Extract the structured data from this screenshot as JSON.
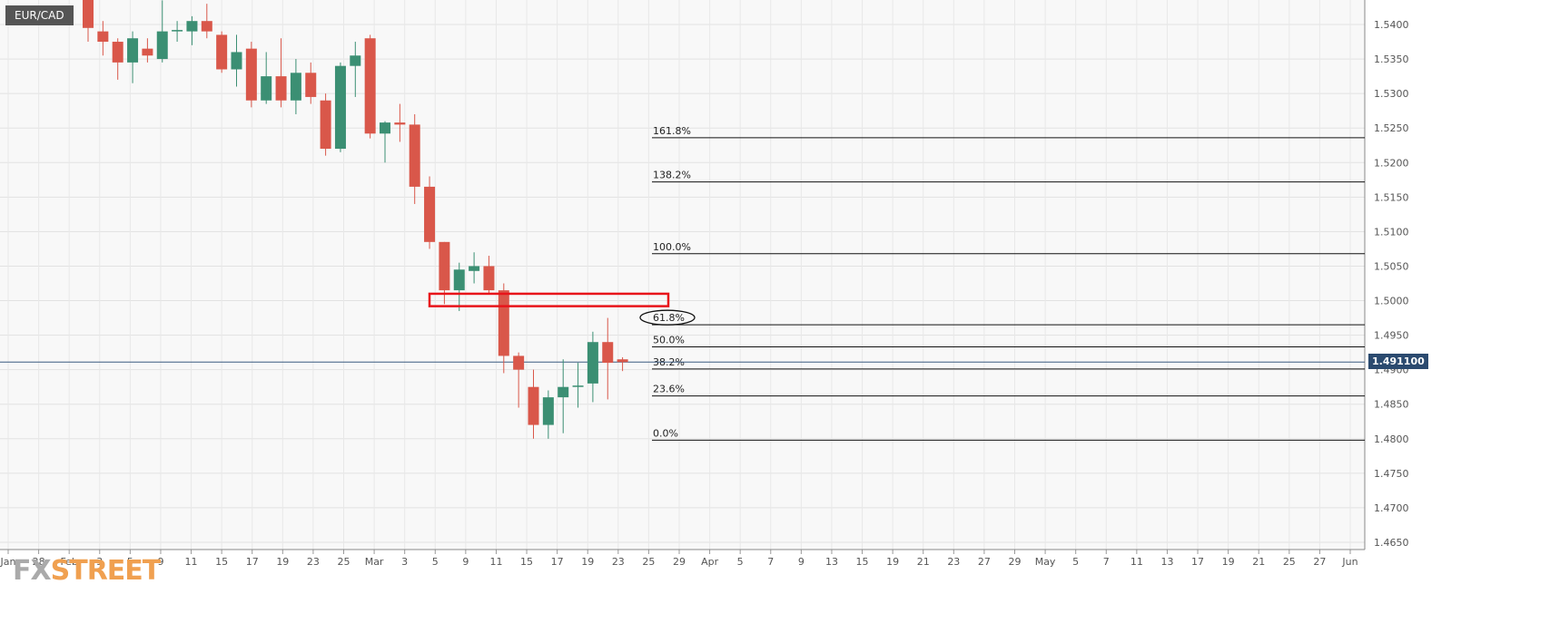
{
  "symbol": "EUR/CAD",
  "current_price_label": "1.491100",
  "logo": {
    "part1": "FX",
    "part2": "STREET"
  },
  "chart_data": {
    "type": "candlestick",
    "title": "",
    "y_ticks": [
      "1.5400",
      "1.5350",
      "1.5300",
      "1.5250",
      "1.5200",
      "1.5150",
      "1.5100",
      "1.5050",
      "1.5000",
      "1.4950",
      "1.4900",
      "1.4850",
      "1.4800",
      "1.4750",
      "1.4700",
      "1.4650"
    ],
    "y_tick_values": [
      1.54,
      1.535,
      1.53,
      1.525,
      1.52,
      1.515,
      1.51,
      1.505,
      1.5,
      1.495,
      1.49,
      1.485,
      1.48,
      1.475,
      1.47,
      1.465
    ],
    "x_ticks": [
      "Jan",
      "28",
      "Feb",
      "3",
      "5",
      "9",
      "11",
      "15",
      "17",
      "19",
      "23",
      "25",
      "Mar",
      "3",
      "5",
      "9",
      "11",
      "15",
      "17",
      "19",
      "23",
      "25",
      "29",
      "Apr",
      "5",
      "7",
      "9",
      "13",
      "15",
      "19",
      "21",
      "23",
      "27",
      "29",
      "May",
      "5",
      "7",
      "11",
      "13",
      "17",
      "19",
      "21",
      "25",
      "27",
      "Jun"
    ],
    "current_price": 1.4911,
    "fibonacci": [
      {
        "label": "161.8%",
        "value": 1.5236
      },
      {
        "label": "138.2%",
        "value": 1.5172
      },
      {
        "label": "100.0%",
        "value": 1.5068
      },
      {
        "label": "61.8%",
        "value": 1.4965
      },
      {
        "label": "50.0%",
        "value": 1.4933
      },
      {
        "label": "38.2%",
        "value": 1.4901
      },
      {
        "label": "23.6%",
        "value": 1.4862
      },
      {
        "label": "0.0%",
        "value": 1.4798
      }
    ],
    "zone": {
      "low": 1.4992,
      "high": 1.501
    },
    "candles": [
      {
        "o": 1.5455,
        "h": 1.5475,
        "l": 1.5375,
        "c": 1.5395
      },
      {
        "o": 1.539,
        "h": 1.5405,
        "l": 1.5355,
        "c": 1.5375
      },
      {
        "o": 1.5375,
        "h": 1.538,
        "l": 1.532,
        "c": 1.5345
      },
      {
        "o": 1.5345,
        "h": 1.539,
        "l": 1.5315,
        "c": 1.538
      },
      {
        "o": 1.5365,
        "h": 1.538,
        "l": 1.5345,
        "c": 1.5355
      },
      {
        "o": 1.535,
        "h": 1.5435,
        "l": 1.5345,
        "c": 1.539
      },
      {
        "o": 1.539,
        "h": 1.5405,
        "l": 1.5375,
        "c": 1.5392
      },
      {
        "o": 1.539,
        "h": 1.5412,
        "l": 1.537,
        "c": 1.5405
      },
      {
        "o": 1.5405,
        "h": 1.543,
        "l": 1.538,
        "c": 1.539
      },
      {
        "o": 1.5385,
        "h": 1.539,
        "l": 1.533,
        "c": 1.5335
      },
      {
        "o": 1.5335,
        "h": 1.5385,
        "l": 1.531,
        "c": 1.536
      },
      {
        "o": 1.5365,
        "h": 1.5375,
        "l": 1.528,
        "c": 1.529
      },
      {
        "o": 1.529,
        "h": 1.536,
        "l": 1.5285,
        "c": 1.5325
      },
      {
        "o": 1.5325,
        "h": 1.538,
        "l": 1.528,
        "c": 1.529
      },
      {
        "o": 1.529,
        "h": 1.535,
        "l": 1.527,
        "c": 1.533
      },
      {
        "o": 1.533,
        "h": 1.5345,
        "l": 1.5285,
        "c": 1.5295
      },
      {
        "o": 1.529,
        "h": 1.53,
        "l": 1.521,
        "c": 1.522
      },
      {
        "o": 1.522,
        "h": 1.5345,
        "l": 1.5215,
        "c": 1.534
      },
      {
        "o": 1.534,
        "h": 1.5375,
        "l": 1.5295,
        "c": 1.5355
      },
      {
        "o": 1.538,
        "h": 1.5385,
        "l": 1.5235,
        "c": 1.5242
      },
      {
        "o": 1.5242,
        "h": 1.526,
        "l": 1.52,
        "c": 1.5258
      },
      {
        "o": 1.5258,
        "h": 1.5285,
        "l": 1.523,
        "c": 1.5255
      },
      {
        "o": 1.5255,
        "h": 1.527,
        "l": 1.514,
        "c": 1.5165
      },
      {
        "o": 1.5165,
        "h": 1.518,
        "l": 1.5075,
        "c": 1.5085
      },
      {
        "o": 1.5085,
        "h": 1.5085,
        "l": 1.4995,
        "c": 1.5015
      },
      {
        "o": 1.5015,
        "h": 1.5055,
        "l": 1.4985,
        "c": 1.5045
      },
      {
        "o": 1.5043,
        "h": 1.507,
        "l": 1.5025,
        "c": 1.505
      },
      {
        "o": 1.505,
        "h": 1.5065,
        "l": 1.501,
        "c": 1.5015
      },
      {
        "o": 1.5015,
        "h": 1.5025,
        "l": 1.4895,
        "c": 1.492
      },
      {
        "o": 1.492,
        "h": 1.4925,
        "l": 1.4845,
        "c": 1.49
      },
      {
        "o": 1.4875,
        "h": 1.49,
        "l": 1.48,
        "c": 1.482
      },
      {
        "o": 1.482,
        "h": 1.487,
        "l": 1.48,
        "c": 1.486
      },
      {
        "o": 1.486,
        "h": 1.4915,
        "l": 1.4808,
        "c": 1.4875
      },
      {
        "o": 1.4875,
        "h": 1.491,
        "l": 1.4845,
        "c": 1.4877
      },
      {
        "o": 1.488,
        "h": 1.4955,
        "l": 1.4853,
        "c": 1.494
      },
      {
        "o": 1.494,
        "h": 1.4975,
        "l": 1.4857,
        "c": 1.491
      },
      {
        "o": 1.4915,
        "h": 1.4918,
        "l": 1.4898,
        "c": 1.4911
      }
    ],
    "grid": true
  }
}
